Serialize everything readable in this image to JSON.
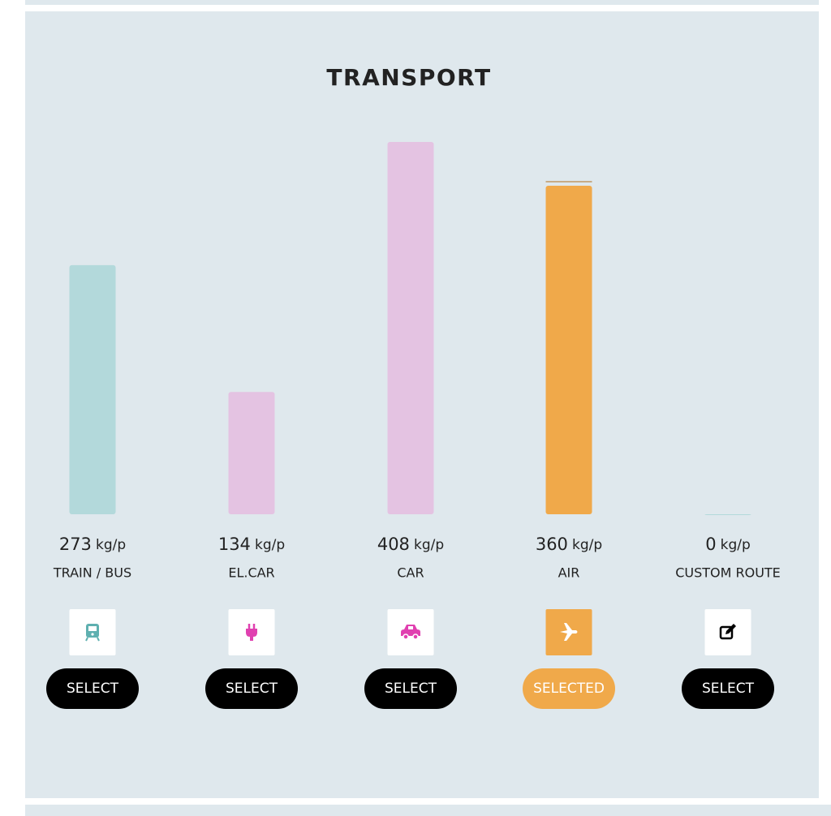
{
  "title": "TRANSPORT",
  "options": [
    {
      "value": 273,
      "unit": "kg/p",
      "label": "TRAIN / BUS",
      "color": "#b3d9db",
      "icon_color": "#5fb0b0",
      "button": "SELECT",
      "selected": false
    },
    {
      "value": 134,
      "unit": "kg/p",
      "label": "EL.CAR",
      "color": "#e4c3e2",
      "icon_color": "#e040b0",
      "button": "SELECT",
      "selected": false
    },
    {
      "value": 408,
      "unit": "kg/p",
      "label": "CAR",
      "color": "#e4c3e2",
      "icon_color": "#e040b0",
      "button": "SELECT",
      "selected": false
    },
    {
      "value": 360,
      "unit": "kg/p",
      "label": "AIR",
      "color": "#f0a94a",
      "icon_color": "#ffffff",
      "button": "SELECTED",
      "selected": true
    },
    {
      "value": 0,
      "unit": "kg/p",
      "label": "CUSTOM ROUTE",
      "color": "#b3d9db",
      "icon_color": "#000000",
      "button": "SELECT",
      "selected": false
    }
  ]
}
